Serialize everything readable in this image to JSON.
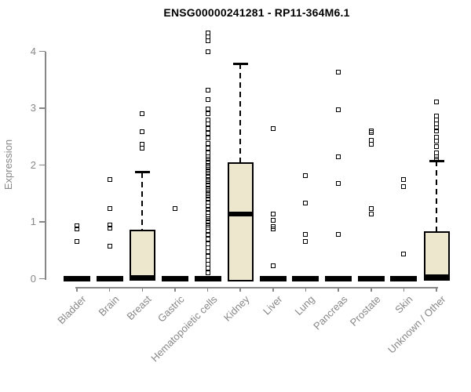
{
  "chart_data": {
    "type": "boxplot",
    "title": "ENSG00000241281 - RP11-364M6.1",
    "ylabel": "Expression",
    "ylim": [
      0,
      4.4
    ],
    "yticks": [
      0,
      1,
      2,
      3,
      4
    ],
    "grid": false,
    "legend": "none",
    "marker": "open-square",
    "categories": [
      "Bladder",
      "Brain",
      "Breast",
      "Gastric",
      "Hematopoietic cells",
      "Kidney",
      "Liver",
      "Lung",
      "Pancreas",
      "Prostate",
      "Skin",
      "Unknown / Other"
    ],
    "series": [
      {
        "category": "Bladder",
        "q1": 0,
        "median": 0,
        "q3": 0,
        "whisker_low": 0,
        "whisker_high": 0,
        "outliers": [
          0.93,
          0.88,
          0.66
        ]
      },
      {
        "category": "Brain",
        "q1": 0,
        "median": 0,
        "q3": 0,
        "whisker_low": 0,
        "whisker_high": 0,
        "outliers": [
          1.74,
          1.23,
          0.95,
          0.89,
          0.57
        ]
      },
      {
        "category": "Breast",
        "q1": 0,
        "median": 0.02,
        "q3": 0.86,
        "whisker_low": 0,
        "whisker_high": 1.87,
        "outliers": [
          2.91,
          2.59,
          2.36,
          2.3
        ]
      },
      {
        "category": "Gastric",
        "q1": 0,
        "median": 0,
        "q3": 0,
        "whisker_low": 0,
        "whisker_high": 0,
        "outliers": [
          1.23
        ]
      },
      {
        "category": "Hematopoietic cells",
        "q1": 0,
        "median": 0,
        "q3": 0,
        "whisker_low": 0,
        "whisker_high": 0,
        "outliers": [
          4.33,
          4.25,
          4.19,
          4.0,
          3.32,
          3.15,
          2.98,
          2.9,
          2.8,
          2.72,
          2.64,
          2.56,
          2.48,
          2.38,
          2.3,
          2.22,
          2.15,
          2.1,
          2.05,
          2.0,
          1.95,
          1.9,
          1.85,
          1.8,
          1.75,
          1.7,
          1.65,
          1.6,
          1.55,
          1.5,
          1.45,
          1.4,
          1.34,
          1.28,
          1.22,
          1.16,
          1.1,
          1.05,
          1.0,
          0.95,
          0.9,
          0.84,
          0.78,
          0.7,
          0.62,
          0.55,
          0.48,
          0.4,
          0.32,
          0.25,
          0.18,
          0.1
        ]
      },
      {
        "category": "Kidney",
        "q1": 0,
        "median": 1.14,
        "q3": 2.05,
        "whisker_low": 0,
        "whisker_high": 3.78,
        "outliers": []
      },
      {
        "category": "Liver",
        "q1": 0,
        "median": 0,
        "q3": 0,
        "whisker_low": 0,
        "whisker_high": 0,
        "outliers": [
          2.64,
          1.14,
          1.03,
          0.92,
          0.88,
          0.23
        ]
      },
      {
        "category": "Lung",
        "q1": 0,
        "median": 0,
        "q3": 0,
        "whisker_low": 0,
        "whisker_high": 0,
        "outliers": [
          1.81,
          1.33,
          0.78,
          0.66
        ]
      },
      {
        "category": "Pancreas",
        "q1": 0,
        "median": 0,
        "q3": 0,
        "whisker_low": 0,
        "whisker_high": 0,
        "outliers": [
          3.63,
          2.97,
          2.15,
          1.67,
          0.78
        ]
      },
      {
        "category": "Prostate",
        "q1": 0,
        "median": 0,
        "q3": 0,
        "whisker_low": 0,
        "whisker_high": 0,
        "outliers": [
          2.6,
          2.57,
          2.44,
          2.36,
          1.23,
          1.14
        ]
      },
      {
        "category": "Skin",
        "q1": 0,
        "median": 0,
        "q3": 0,
        "whisker_low": 0,
        "whisker_high": 0,
        "outliers": [
          1.75,
          1.62,
          0.44
        ]
      },
      {
        "category": "Unknown / Other",
        "q1": 0,
        "median": 0.03,
        "q3": 0.83,
        "whisker_low": 0,
        "whisker_high": 2.07,
        "outliers": [
          3.11,
          2.86,
          2.79,
          2.72,
          2.65,
          2.6,
          2.49,
          2.42,
          2.33,
          2.22,
          2.15,
          2.1
        ]
      }
    ],
    "colors": {
      "box_fill": "#EDE8CD",
      "box_border": "#000000",
      "median": "#000000",
      "whisker": "#000000",
      "outlier": "#000000",
      "axis": "#878787",
      "tick_label": "#878787",
      "title": "#000000",
      "background": "#FFFFFF"
    }
  }
}
